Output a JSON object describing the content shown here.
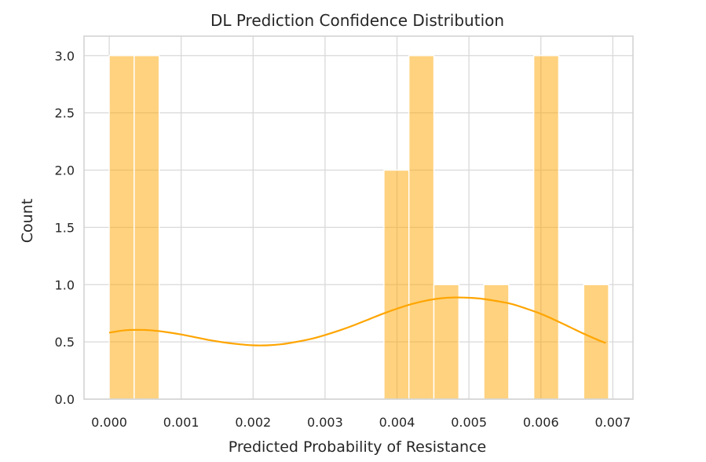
{
  "chart_data": {
    "type": "bar",
    "title": "DL Prediction Confidence Distribution",
    "xlabel": "Predicted Probability of Resistance",
    "ylabel": "Count",
    "xlim": [
      -0.00035,
      0.00728
    ],
    "ylim": [
      0,
      3.17
    ],
    "x_ticks": [
      0,
      0.001,
      0.002,
      0.003,
      0.004,
      0.005,
      0.006,
      0.007
    ],
    "x_tick_labels": [
      "0.000",
      "0.001",
      "0.002",
      "0.003",
      "0.004",
      "0.005",
      "0.006",
      "0.007"
    ],
    "y_ticks": [
      0,
      0.5,
      1,
      1.5,
      2,
      2.5,
      3
    ],
    "y_tick_labels": [
      "0.0",
      "0.5",
      "1.0",
      "1.5",
      "2.0",
      "2.5",
      "3.0"
    ],
    "bin_width": 0.000347,
    "bins": [
      {
        "start": 0.0,
        "count": 3
      },
      {
        "start": 0.000347,
        "count": 3
      },
      {
        "start": 0.003819,
        "count": 2
      },
      {
        "start": 0.004166,
        "count": 3
      },
      {
        "start": 0.004513,
        "count": 1
      },
      {
        "start": 0.005207,
        "count": 1
      },
      {
        "start": 0.005901,
        "count": 3
      },
      {
        "start": 0.006595,
        "count": 1
      }
    ],
    "kde": {
      "x": [
        0.0,
        0.0002,
        0.0004,
        0.0006,
        0.0008,
        0.001,
        0.0012,
        0.0014,
        0.0016,
        0.0018,
        0.002,
        0.0022,
        0.0024,
        0.0026,
        0.0028,
        0.003,
        0.0032,
        0.0034,
        0.0036,
        0.0038,
        0.004,
        0.0042,
        0.0044,
        0.0046,
        0.0048,
        0.005,
        0.0052,
        0.0054,
        0.0056,
        0.0058,
        0.006,
        0.0062,
        0.0064,
        0.0066,
        0.0068,
        0.0069
      ],
      "y": [
        0.58,
        0.6,
        0.605,
        0.6,
        0.585,
        0.565,
        0.54,
        0.515,
        0.495,
        0.48,
        0.47,
        0.47,
        0.48,
        0.5,
        0.525,
        0.56,
        0.6,
        0.645,
        0.695,
        0.745,
        0.79,
        0.83,
        0.86,
        0.88,
        0.888,
        0.885,
        0.875,
        0.855,
        0.83,
        0.79,
        0.745,
        0.69,
        0.63,
        0.57,
        0.515,
        0.49
      ]
    },
    "grid": true,
    "legend": "none",
    "bar_color": "#ffa500",
    "bar_opacity": 0.5,
    "line_color": "#ffa500"
  }
}
